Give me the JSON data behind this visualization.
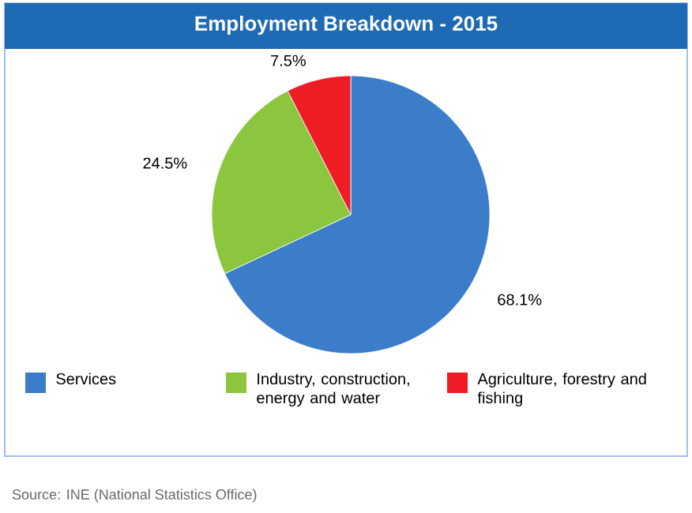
{
  "chart_data": {
    "type": "pie",
    "title": "Employment Breakdown - 2015",
    "categories": [
      "Services",
      "Industry,  construction, energy and water",
      "Agriculture, forestry and fishing"
    ],
    "values": [
      68.1,
      24.5,
      7.5
    ],
    "value_labels": [
      "68.1%",
      "24.5%",
      "7.5%"
    ],
    "colors": [
      "#3b7dc8",
      "#8cc63f",
      "#ee1c25"
    ],
    "legend": "bottom",
    "annotations": [
      "Source: INE (National Statistics Office)"
    ]
  }
}
